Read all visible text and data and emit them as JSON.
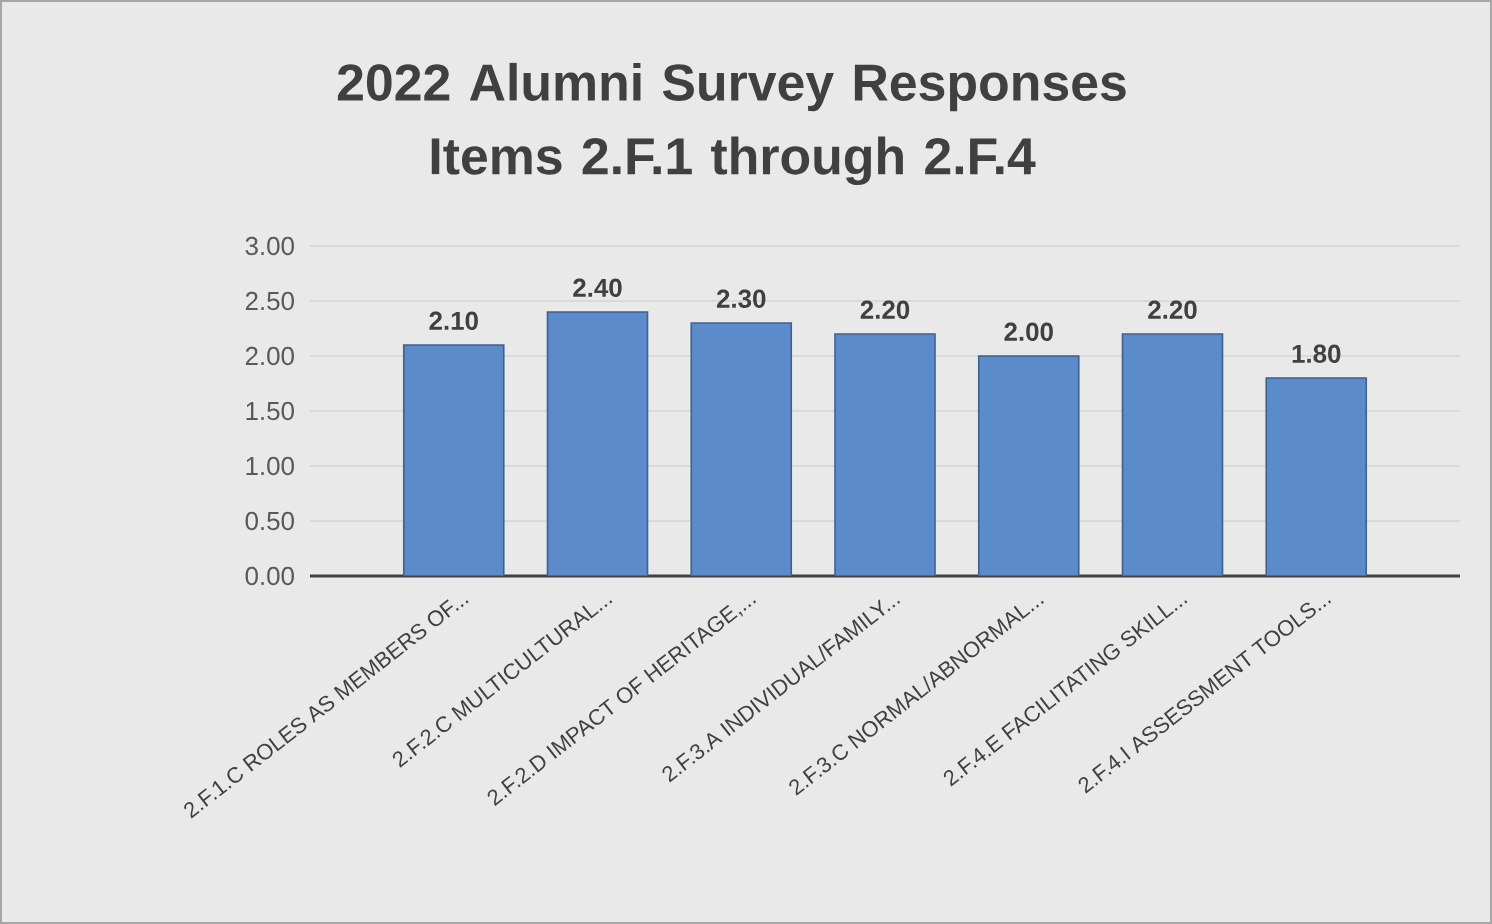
{
  "chart_data": {
    "type": "bar",
    "title": "2022 Alumni Survey Responses Items 2.F.1 through 2.F.4",
    "categories": [
      "2.F.1.C ROLES AS MEMBERS OF...",
      "2.F.2.C MULTICULTURAL...",
      "2.F.2.D IMPACT OF HERITAGE,...",
      "2.F.3.A INDIVIDUAL/FAMILY...",
      "2.F.3.C NORMAL/ABNORMAL...",
      "2.F.4.E FACILITATING SKILL...",
      "2.F.4.I ASSESSMENT TOOLS..."
    ],
    "values": [
      2.1,
      2.4,
      2.3,
      2.2,
      2.0,
      2.2,
      1.8
    ],
    "value_labels": [
      "2.10",
      "2.40",
      "2.30",
      "2.20",
      "2.00",
      "2.20",
      "1.80"
    ],
    "color": "#5b8bcb",
    "ylim": [
      0,
      3
    ],
    "yticks": [
      {
        "value": 0,
        "label": "0.00"
      },
      {
        "value": 0.5,
        "label": "0.50"
      },
      {
        "value": 1,
        "label": "1.00"
      },
      {
        "value": 1.5,
        "label": "1.50"
      },
      {
        "value": 2,
        "label": "2.00"
      },
      {
        "value": 2.5,
        "label": "2.50"
      },
      {
        "value": 3,
        "label": "3.00"
      }
    ],
    "grid": "y"
  }
}
